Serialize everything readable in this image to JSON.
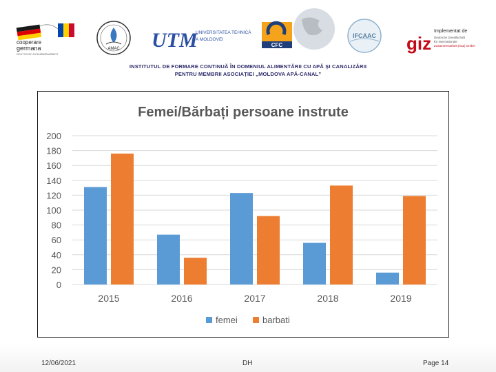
{
  "header": {
    "logos": {
      "cooperare": {
        "line1": "cooperare",
        "line2": "germana",
        "line3": "DEUTSCHE ZUSAMMENARBEIT"
      },
      "amac": {
        "text": "AMAC"
      },
      "utm": {
        "mark": "UTM",
        "name_line1": "UNIVERSITATEA TEHNICĂ",
        "name_line2": "A MOLDOVEI"
      },
      "cfc": {
        "text": "CFC"
      },
      "ifcaac": {
        "text": "IFCAAC"
      },
      "giz": {
        "implemented_by": "Implementat de",
        "mark": "giz",
        "line1": "Deutsche Gesellschaft",
        "line2": "für Internationale",
        "line3": "Zusammenarbeit (GIZ) GmbH"
      }
    },
    "institute_line1": "INSTITUTUL DE FORMARE CONTINUĂ ÎN DOMENIUL ALIMENTĂRII CU APĂ ŞI CANALIZĂRII",
    "institute_line2": "PENTRU MEMBRII ASOCIAŢIEI „MOLDOVA APĂ-CANAL”"
  },
  "colors": {
    "femei": "#5b9bd5",
    "barbati": "#ed7d31",
    "title": "#595959",
    "axis_text": "#595959",
    "grid": "#d9d9d9"
  },
  "chart_data": {
    "type": "bar",
    "title": "Femei/Bărbați persoane instrute",
    "categories": [
      "2015",
      "2016",
      "2017",
      "2018",
      "2019"
    ],
    "series": [
      {
        "name": "femei",
        "values": [
          131,
          67,
          123,
          56,
          16
        ]
      },
      {
        "name": "barbati",
        "values": [
          176,
          36,
          92,
          133,
          119
        ]
      }
    ],
    "ylim": [
      0,
      200
    ],
    "yticks": [
      "0",
      "20",
      "40",
      "60",
      "80",
      "100",
      "120",
      "140",
      "160",
      "180",
      "200"
    ],
    "xlabel": "",
    "ylabel": "",
    "grid": true,
    "legend": "bottom"
  },
  "footer": {
    "date": "12/06/2021",
    "author": "DH",
    "page": "Page 14"
  }
}
